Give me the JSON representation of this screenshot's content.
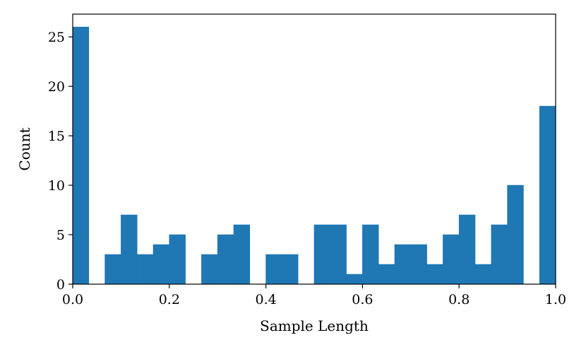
{
  "chart_data": {
    "type": "bar",
    "subtype": "histogram",
    "xlabel": "Sample Length",
    "ylabel": "Count",
    "xlim": [
      0.0,
      1.0
    ],
    "ylim": [
      0,
      27.3
    ],
    "xticks": [
      "0.0",
      "0.2",
      "0.4",
      "0.6",
      "0.8",
      "1.0"
    ],
    "yticks": [
      "0",
      "5",
      "10",
      "15",
      "20",
      "25"
    ],
    "bin_width": 0.03333,
    "bin_starts": [
      0.0,
      0.0333,
      0.0667,
      0.1,
      0.1333,
      0.1667,
      0.2,
      0.2333,
      0.2667,
      0.3,
      0.3333,
      0.3667,
      0.4,
      0.4333,
      0.4667,
      0.5,
      0.5333,
      0.5667,
      0.6,
      0.6333,
      0.6667,
      0.7,
      0.7333,
      0.7667,
      0.8,
      0.8333,
      0.8667,
      0.9,
      0.9333,
      0.9667
    ],
    "values": [
      26,
      0,
      3,
      7,
      3,
      4,
      5,
      0,
      3,
      5,
      6,
      0,
      3,
      3,
      0,
      6,
      6,
      1,
      6,
      2,
      4,
      4,
      2,
      5,
      7,
      2,
      6,
      10,
      0,
      18
    ],
    "color": "#1f77b4",
    "grid": false
  }
}
